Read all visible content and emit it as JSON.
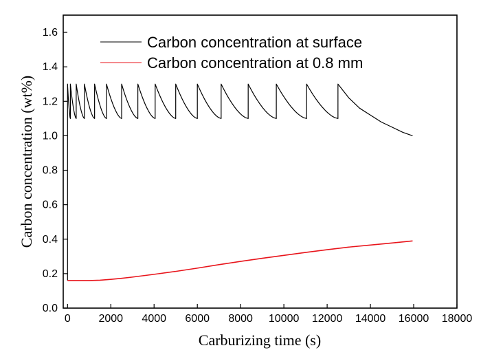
{
  "chart_data": {
    "type": "line",
    "title": "",
    "xlabel": "Carburizing time (s)",
    "ylabel": "Carbon concentration (wt%)",
    "xlim": [
      -200,
      18000
    ],
    "ylim": [
      0.0,
      1.7
    ],
    "xticks": [
      0,
      2000,
      4000,
      6000,
      8000,
      10000,
      12000,
      14000,
      16000,
      18000
    ],
    "yticks": [
      0.0,
      0.2,
      0.4,
      0.6,
      0.8,
      1.0,
      1.2,
      1.4,
      1.6
    ],
    "x_tick_labels": [
      "0",
      "2000",
      "4000",
      "6000",
      "8000",
      "10000",
      "12000",
      "14000",
      "16000",
      "18000"
    ],
    "y_tick_labels": [
      "0.0",
      "0.2",
      "0.4",
      "0.6",
      "0.8",
      "1.0",
      "1.2",
      "1.4",
      "1.6"
    ],
    "grid": false,
    "legend_position": "top-center",
    "series": [
      {
        "name": "Carbon concentration at surface",
        "color": "#000000",
        "points": [
          [
            0,
            0.16
          ],
          [
            0,
            1.3
          ],
          [
            130,
            1.1
          ],
          [
            130,
            1.3
          ],
          [
            400,
            1.1
          ],
          [
            400,
            1.3
          ],
          [
            780,
            1.1
          ],
          [
            780,
            1.3
          ],
          [
            1250,
            1.1
          ],
          [
            1250,
            1.3
          ],
          [
            1800,
            1.1
          ],
          [
            1800,
            1.3
          ],
          [
            2500,
            1.1
          ],
          [
            2500,
            1.3
          ],
          [
            3250,
            1.1
          ],
          [
            3250,
            1.3
          ],
          [
            4050,
            1.1
          ],
          [
            4050,
            1.3
          ],
          [
            5000,
            1.1
          ],
          [
            5000,
            1.3
          ],
          [
            6000,
            1.1
          ],
          [
            6000,
            1.3
          ],
          [
            7100,
            1.1
          ],
          [
            7100,
            1.3
          ],
          [
            8350,
            1.1
          ],
          [
            8350,
            1.3
          ],
          [
            9650,
            1.1
          ],
          [
            9650,
            1.3
          ],
          [
            11050,
            1.1
          ],
          [
            11050,
            1.3
          ],
          [
            12500,
            1.1
          ],
          [
            12500,
            1.3
          ],
          [
            13000,
            1.22
          ],
          [
            13500,
            1.16
          ],
          [
            14000,
            1.12
          ],
          [
            14500,
            1.08
          ],
          [
            15000,
            1.05
          ],
          [
            15500,
            1.02
          ],
          [
            15950,
            1.0
          ]
        ]
      },
      {
        "name": "Carbon concentration at 0.8 mm",
        "color": "#e8141b",
        "points": [
          [
            0,
            0.16
          ],
          [
            500,
            0.16
          ],
          [
            1000,
            0.16
          ],
          [
            1500,
            0.162
          ],
          [
            2000,
            0.167
          ],
          [
            2500,
            0.173
          ],
          [
            3000,
            0.18
          ],
          [
            3500,
            0.188
          ],
          [
            4000,
            0.196
          ],
          [
            5000,
            0.213
          ],
          [
            6000,
            0.232
          ],
          [
            7000,
            0.252
          ],
          [
            8000,
            0.271
          ],
          [
            9000,
            0.289
          ],
          [
            10000,
            0.306
          ],
          [
            11000,
            0.323
          ],
          [
            12000,
            0.339
          ],
          [
            13000,
            0.354
          ],
          [
            14000,
            0.366
          ],
          [
            15000,
            0.378
          ],
          [
            15950,
            0.39
          ]
        ]
      }
    ]
  }
}
